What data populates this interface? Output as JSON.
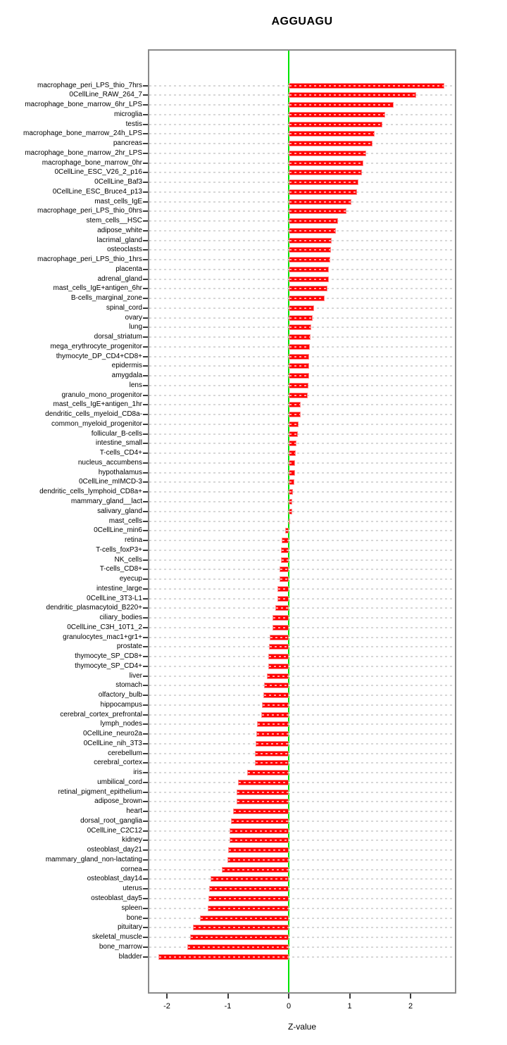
{
  "page": {
    "background": "#ffffff"
  },
  "chart_data": {
    "type": "bar",
    "orientation": "horizontal",
    "title": "AGGUAGU",
    "xlabel": "Z-value",
    "ylabel": "",
    "legend": "none",
    "grid": "dashed horizontal line per category row",
    "xticks": [
      -2,
      -1,
      0,
      1,
      2
    ],
    "xlim": [
      -2.3,
      2.75
    ],
    "zero_reference_line": 0,
    "colors": {
      "bar": "#ff0000",
      "bar_edge": "#ff8f8f",
      "zero_line": "#00e400",
      "grid_line": "#d7d7d7",
      "box_border": "#8a8a8a",
      "text": "#000000"
    },
    "categories": [
      "macrophage_peri_LPS_thio_7hrs",
      "0CellLine_RAW_264_7",
      "macrophage_bone_marrow_6hr_LPS",
      "microglia",
      "testis",
      "macrophage_bone_marrow_24h_LPS",
      "pancreas",
      "macrophage_bone_marrow_2hr_LPS",
      "macrophage_bone_marrow_0hr",
      "0CellLine_ESC_V26_2_p16",
      "0CellLine_Baf3",
      "0CellLine_ESC_Bruce4_p13",
      "mast_cells_IgE",
      "macrophage_peri_LPS_thio_0hrs",
      "stem_cells__HSC",
      "adipose_white",
      "lacrimal_gland",
      "osteoclasts",
      "macrophage_peri_LPS_thio_1hrs",
      "placenta",
      "adrenal_gland",
      "mast_cells_IgE+antigen_6hr",
      "B-cells_marginal_zone",
      "spinal_cord",
      "ovary",
      "lung",
      "dorsal_striatum",
      "mega_erythrocyte_progenitor",
      "thymocyte_DP_CD4+CD8+",
      "epidermis",
      "amygdala",
      "lens",
      "granulo_mono_progenitor",
      "mast_cells_IgE+antigen_1hr",
      "dendritic_cells_myeloid_CD8a-",
      "common_myeloid_progenitor",
      "follicular_B-cells",
      "intestine_small",
      "T-cells_CD4+",
      "nucleus_accumbens",
      "hypothalamus",
      "0CellLine_mIMCD-3",
      "dendritic_cells_lymphoid_CD8a+",
      "mammary_gland__lact",
      "salivary_gland",
      "mast_cells",
      "0CellLine_min6",
      "retina",
      "T-cells_foxP3+",
      "NK_cells",
      "T-cells_CD8+",
      "eyecup",
      "intestine_large",
      "0CellLine_3T3-L1",
      "dendritic_plasmacytoid_B220+",
      "ciliary_bodies",
      "0CellLine_C3H_10T1_2",
      "granulocytes_mac1+gr1+",
      "prostate",
      "thymocyte_SP_CD8+",
      "thymocyte_SP_CD4+",
      "liver",
      "stomach",
      "olfactory_bulb",
      "hippocampus",
      "cerebral_cortex_prefrontal",
      "lymph_nodes",
      "0CellLine_neuro2a",
      "0CellLine_nih_3T3",
      "cerebellum",
      "cerebral_cortex",
      "iris",
      "umbilical_cord",
      "retinal_pigment_epithelium",
      "adipose_brown",
      "heart",
      "dorsal_root_ganglia",
      "0CellLine_C2C12",
      "kidney",
      "osteoblast_day21",
      "mammary_gland_non-lactating",
      "cornea",
      "osteoblast_day14",
      "uterus",
      "osteoblast_day5",
      "spleen",
      "bone",
      "pituitary",
      "skeletal_muscle",
      "bone_marrow",
      "bladder"
    ],
    "values": [
      2.56,
      2.09,
      1.72,
      1.58,
      1.54,
      1.41,
      1.38,
      1.27,
      1.23,
      1.2,
      1.14,
      1.12,
      1.03,
      0.95,
      0.81,
      0.78,
      0.71,
      0.69,
      0.68,
      0.66,
      0.66,
      0.64,
      0.59,
      0.42,
      0.39,
      0.37,
      0.36,
      0.35,
      0.34,
      0.34,
      0.33,
      0.32,
      0.31,
      0.2,
      0.2,
      0.16,
      0.15,
      0.13,
      0.11,
      0.1,
      0.1,
      0.09,
      0.07,
      0.06,
      0.06,
      0.02,
      -0.06,
      -0.11,
      -0.13,
      -0.13,
      -0.15,
      -0.15,
      -0.18,
      -0.19,
      -0.22,
      -0.27,
      -0.27,
      -0.31,
      -0.32,
      -0.33,
      -0.34,
      -0.36,
      -0.41,
      -0.42,
      -0.44,
      -0.45,
      -0.52,
      -0.53,
      -0.54,
      -0.55,
      -0.56,
      -0.68,
      -0.83,
      -0.85,
      -0.86,
      -0.91,
      -0.95,
      -0.97,
      -0.97,
      -1.0,
      -1.01,
      -1.1,
      -1.28,
      -1.31,
      -1.32,
      -1.33,
      -1.46,
      -1.57,
      -1.62,
      -1.67,
      -2.14
    ]
  }
}
